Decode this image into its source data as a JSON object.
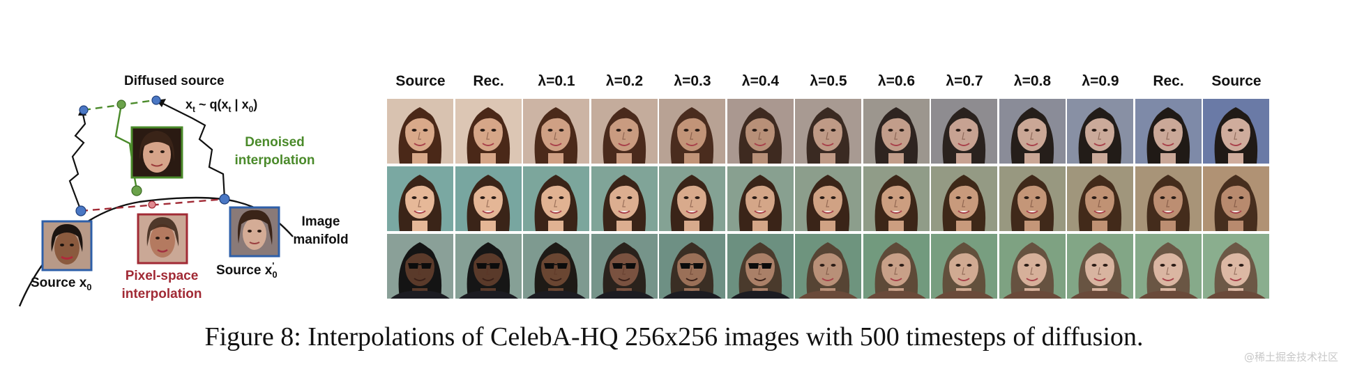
{
  "diagram": {
    "diffused_source_label": "Diffused source",
    "xt_label": "x",
    "xt_sub": "t",
    "xt_mid": " ~ q(x",
    "xt_sub2": "t",
    "xt_bar": " | x",
    "xt_sub3": "0",
    "xt_end": ")",
    "denoised_line1": "Denoised",
    "denoised_line2": "interpolation",
    "image_line1": "Image",
    "image_line2": "manifold",
    "source_x0_label": "Source x",
    "source_x0_sub": "0",
    "pixel_line1": "Pixel-space",
    "pixel_line2": "interpolation",
    "source_x0p_label": "Source x",
    "source_x0p_sup": "'",
    "source_x0p_sub": "0",
    "colors": {
      "blue": "#2e5fa8",
      "green": "#4a8a2a",
      "red": "#a12a35",
      "black": "#111111"
    }
  },
  "grid": {
    "columns": [
      "Source",
      "Rec.",
      "λ=0.1",
      "λ=0.2",
      "λ=0.3",
      "λ=0.4",
      "λ=0.5",
      "λ=0.6",
      "λ=0.7",
      "λ=0.8",
      "λ=0.9",
      "Rec.",
      "Source"
    ],
    "rows": [
      {
        "skin": [
          "#d9a98a",
          "#d6a688",
          "#cfa084",
          "#c99b80",
          "#c29478",
          "#b89078",
          "#bf9a86",
          "#c29d8a",
          "#c7a292",
          "#caa796",
          "#cbaa9a",
          "#caa898",
          "#cfac9c"
        ],
        "hair": [
          "#4a2818",
          "#4a2818",
          "#4b2a1a",
          "#4a2a1c",
          "#4a2c1e",
          "#3e2a20",
          "#3a2a22",
          "#2e2420",
          "#2a221e",
          "#251e1a",
          "#221c18",
          "#201a16",
          "#201a16"
        ],
        "bg": [
          "#d8c2b0",
          "#dcc6b4",
          "#ccb4a4",
          "#c4ac9c",
          "#b8a294",
          "#aa9890",
          "#a89a92",
          "#9c968e",
          "#8e8c90",
          "#8a8c98",
          "#8890a4",
          "#7e8aa8",
          "#6a7aa6"
        ]
      },
      {
        "skin": [
          "#e6b898",
          "#e4b696",
          "#e0b292",
          "#dcae90",
          "#d8aa8c",
          "#d4a688",
          "#d0a284",
          "#cc9e80",
          "#c89a7c",
          "#c49678",
          "#c09274",
          "#bc8e72",
          "#b88a6e"
        ],
        "hair": [
          "#3a2418",
          "#3a2418",
          "#3a2418",
          "#3a2418",
          "#3a2418",
          "#3a2418",
          "#3a2418",
          "#3c2618",
          "#3e2818",
          "#40291a",
          "#422a1a",
          "#442c1c",
          "#462e1e"
        ],
        "bg": [
          "#7aa8a2",
          "#78a6a0",
          "#7ca69c",
          "#80a498",
          "#84a294",
          "#88a090",
          "#8c9e8c",
          "#909c88",
          "#949a84",
          "#989880",
          "#a0967c",
          "#a89478",
          "#b09274"
        ]
      },
      {
        "skin": [
          "#5a3a2a",
          "#5a3a2a",
          "#6a4632",
          "#7a5240",
          "#9a7058",
          "#aa8068",
          "#b89078",
          "#c8a088",
          "#d0aa92",
          "#d6b09a",
          "#d8b4a0",
          "#dab6a2",
          "#dcb8a4"
        ],
        "hair": [
          "#141414",
          "#161616",
          "#1e1a16",
          "#2a221c",
          "#3a2e24",
          "#4a3a2c",
          "#564434",
          "#5e4a38",
          "#62503c",
          "#665240",
          "#685442",
          "#6a5644",
          "#6c5846"
        ],
        "bg": [
          "#8aa098",
          "#86a096",
          "#7e9a90",
          "#76948a",
          "#6e9084",
          "#6c9080",
          "#6e947e",
          "#729a7e",
          "#789e80",
          "#7ea282",
          "#82a686",
          "#86aa8a",
          "#8aae8e"
        ],
        "glasses": [
          true,
          true,
          true,
          true,
          true,
          true,
          false,
          false,
          false,
          false,
          false,
          false,
          false
        ]
      }
    ]
  },
  "caption": {
    "label": "Figure 8:",
    "text": "Interpolations of CelebA-HQ 256x256 images with 500 timesteps of diffusion."
  },
  "watermark": "@稀土掘金技术社区"
}
